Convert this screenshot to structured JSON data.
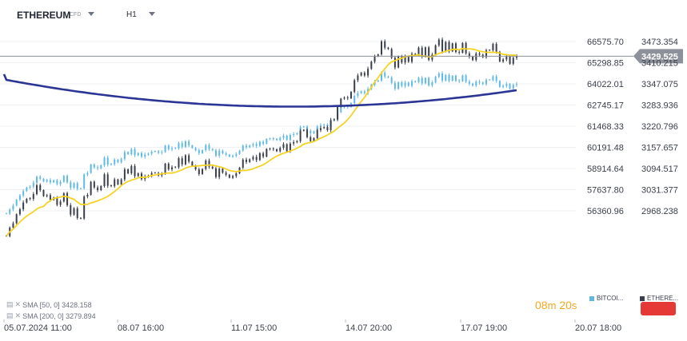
{
  "header": {
    "symbol": "ETHEREUM",
    "instrument_type": "CFD",
    "timeframe": "H1"
  },
  "indicators": [
    {
      "label": "SMA [50, 0] 3428.158",
      "color": "#f5d327"
    },
    {
      "label": "SMA [200, 0] 3279.894",
      "color": "#2b3595"
    }
  ],
  "timer": {
    "minutes": "08",
    "m": "m",
    "seconds": "20",
    "s": "s"
  },
  "legend": [
    {
      "name": "BITCOI...",
      "color": "#5fb9e6"
    },
    {
      "name": "ETHERE...",
      "color": "#3a3f4b"
    }
  ],
  "colors": {
    "bitcoin": "#5fb9e6",
    "ethereum": "#3a3f4b",
    "sma50": "#f5d327",
    "sma200": "#2b3595",
    "current": "#8d9199",
    "alert": "#e53935"
  },
  "chart_data": {
    "type": "candlestick",
    "x_labels": [
      "05.07.2024 11:00",
      "08.07 16:00",
      "11.07 15:00",
      "14.07 20:00",
      "17.07 19:00",
      "20.07 18:00"
    ],
    "left_axis": {
      "series": "BITCOIN",
      "ticks": [
        66575.7,
        65298.85,
        64022.01,
        62745.17,
        61468.33,
        60191.48,
        58914.64,
        57637.8,
        56360.96
      ]
    },
    "right_axis": {
      "series": "ETHEREUM",
      "ticks": [
        3473.354,
        3410.215,
        3347.075,
        3283.936,
        3220.796,
        3157.657,
        3094.517,
        3031.377,
        2968.238
      ]
    },
    "current_price": 3429.525,
    "ethereum_close": [
      2893,
      2918,
      2931,
      2958,
      2973,
      2993,
      3004,
      3004,
      3018,
      3045,
      3030,
      3012,
      3015,
      3001,
      3008,
      2986,
      2996,
      3021,
      2985,
      2957,
      2976,
      2947,
      2945,
      3011,
      3016,
      3055,
      3038,
      3030,
      3042,
      3077,
      3043,
      3042,
      3062,
      3047,
      3062,
      3092,
      3080,
      3102,
      3072,
      3080,
      3063,
      3070,
      3073,
      3081,
      3081,
      3074,
      3078,
      3109,
      3092,
      3098,
      3098,
      3125,
      3107,
      3134,
      3115,
      3102,
      3092,
      3078,
      3093,
      3118,
      3100,
      3095,
      3069,
      3094,
      3082,
      3076,
      3067,
      3072,
      3080,
      3097,
      3121,
      3114,
      3122,
      3129,
      3120,
      3140,
      3130,
      3153,
      3152,
      3152,
      3146,
      3156,
      3167,
      3146,
      3169,
      3173,
      3176,
      3207,
      3210,
      3188,
      3176,
      3185,
      3209,
      3215,
      3218,
      3209,
      3239,
      3241,
      3278,
      3303,
      3306,
      3304,
      3323,
      3358,
      3372,
      3380,
      3372,
      3392,
      3413,
      3429,
      3435,
      3474,
      3455,
      3451,
      3425,
      3396,
      3429,
      3411,
      3428,
      3413,
      3437,
      3433,
      3455,
      3428,
      3456,
      3419,
      3434,
      3462,
      3479,
      3444,
      3472,
      3444,
      3468,
      3442,
      3440,
      3469,
      3438,
      3428,
      3418,
      3438,
      3434,
      3427,
      3447,
      3447,
      3466,
      3443,
      3414,
      3420,
      3429,
      3407,
      3425,
      3429
    ],
    "bitcoin_close": [
      56185,
      56445,
      56674,
      57029,
      57288,
      57554,
      57762,
      57818,
      58053,
      58418,
      58298,
      58133,
      58223,
      58081,
      58203,
      57971,
      58111,
      58469,
      58086,
      57751,
      58026,
      57685,
      57710,
      58551,
      58647,
      59154,
      58986,
      58927,
      59109,
      59566,
      59152,
      59178,
      59447,
      59285,
      59503,
      59904,
      59782,
      60082,
      59717,
      59841,
      59632,
      59749,
      59811,
      59926,
      59952,
      59861,
      59911,
      60295,
      60077,
      60135,
      60130,
      60448,
      60223,
      60553,
      60308,
      60148,
      60016,
      59839,
      60017,
      60322,
      60088,
      60014,
      59686,
      59990,
      59832,
      59751,
      59630,
      59690,
      59786,
      59994,
      60289,
      60202,
      60299,
      60386,
      60276,
      60528,
      60409,
      60699,
      60695,
      60699,
      60632,
      60760,
      60895,
      60645,
      60937,
      60988,
      61027,
      61414,
      61451,
      61190,
      61045,
      61151,
      61452,
      61529,
      61562,
      61452,
      61817,
      61847,
      62303,
      62608,
      62649,
      62626,
      62861,
      63293,
      63468,
      63567,
      63469,
      63710,
      63969,
      64161,
      64230,
      64704,
      64463,
      64409,
      64081,
      63725,
      64115,
      63896,
      64094,
      63905,
      64182,
      64129,
      64380,
      64048,
      64378,
      63932,
      64111,
      64452,
      64649,
      64222,
      64551,
      64213,
      64508,
      64204,
      64179,
      64531,
      64151,
      64031,
      63914,
      64151,
      64099,
      64014,
      64253,
      64250,
      64476,
      64195,
      63835,
      63907,
      64011,
      63743,
      63961,
      64011
    ],
    "sma50_label": "SMA [50, 0] 3428.158",
    "sma200_label": "SMA [200, 0] 3279.894"
  }
}
